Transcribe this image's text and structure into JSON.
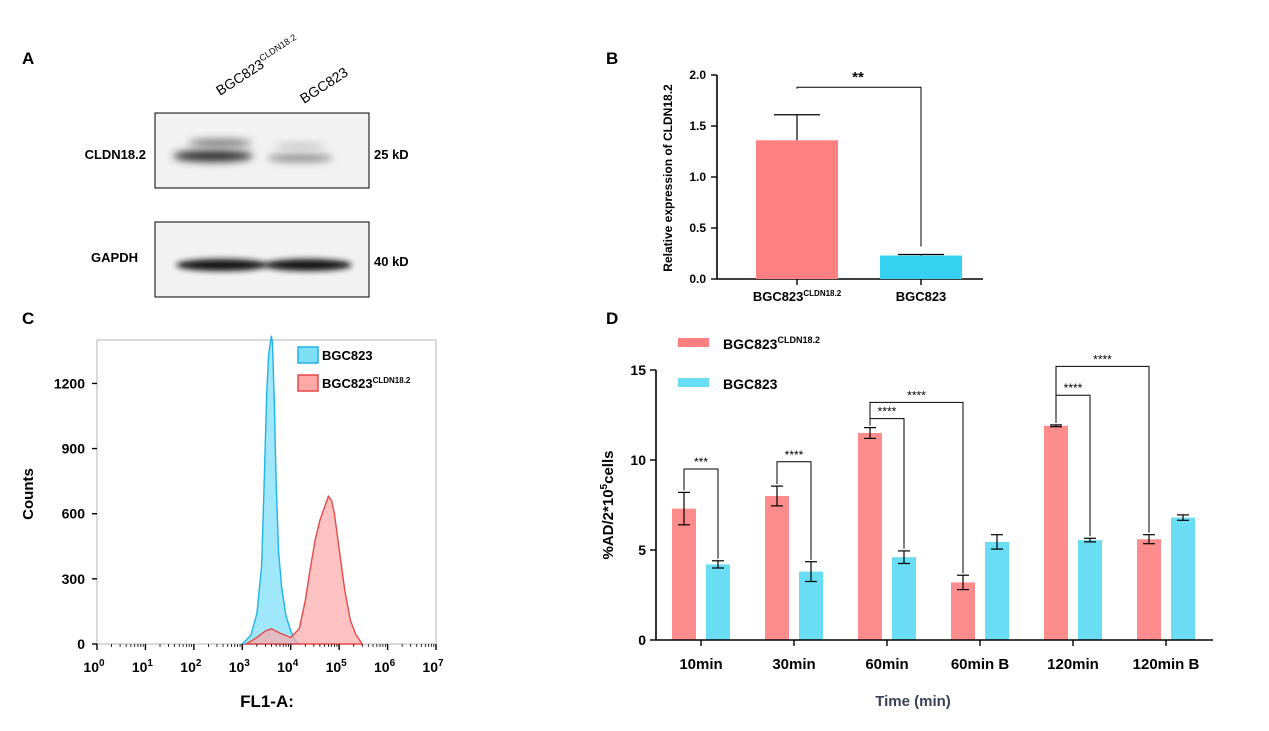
{
  "panel_labels": {
    "a": "A",
    "b": "B",
    "c": "C",
    "d": "D"
  },
  "colors": {
    "red": "#ff8080",
    "red_line": "#e84848",
    "blue": "#36d1f0",
    "blue_line": "#20b4e6",
    "red_fill": "#ffa8a8",
    "blue_fill": "#7fdff7"
  },
  "chart_data": [
    {
      "panel": "A",
      "type": "table",
      "lanes": [
        {
          "base": "BGC823",
          "sup": "CLDN18.2"
        },
        {
          "base": "BGC823",
          "sup": ""
        }
      ],
      "blots": [
        {
          "protein": "CLDN18.2",
          "size": "25 kD"
        },
        {
          "protein": "GAPDH",
          "size": "40 kD"
        }
      ]
    },
    {
      "panel": "B",
      "type": "bar",
      "ylabel": "Relative expression of CLDN18.2",
      "ylim": [
        0,
        2.0
      ],
      "yticks": [
        "0.0",
        "0.5",
        "1.0",
        "1.5",
        "2.0"
      ],
      "categories": [
        {
          "base": "BGC823",
          "sup": "CLDN18.2"
        },
        {
          "base": "BGC823",
          "sup": ""
        }
      ],
      "values": [
        1.36,
        0.23
      ],
      "errors": [
        0.25,
        0.01
      ],
      "significance": "**"
    },
    {
      "panel": "C",
      "type": "area",
      "xlabel": "FL1-A:",
      "ylabel": "Counts",
      "x_scale": "log",
      "xlim": [
        1,
        10000000
      ],
      "xticks": [
        {
          "base": "10",
          "exp": "0"
        },
        {
          "base": "10",
          "exp": "1"
        },
        {
          "base": "10",
          "exp": "2"
        },
        {
          "base": "10",
          "exp": "3"
        },
        {
          "base": "10",
          "exp": "4"
        },
        {
          "base": "10",
          "exp": "5"
        },
        {
          "base": "10",
          "exp": "6"
        },
        {
          "base": "10",
          "exp": "7"
        }
      ],
      "ylim": [
        0,
        1400
      ],
      "yticks": [
        "0",
        "300",
        "600",
        "900",
        "1200"
      ],
      "legend": [
        {
          "base": "BGC823",
          "sup": ""
        },
        {
          "base": "BGC823",
          "sup": "CLDN18.2"
        }
      ],
      "series": [
        {
          "x": [
            1000,
            1500,
            2000,
            2500,
            2800,
            3200,
            3500,
            3800,
            4000,
            4200,
            4600,
            5000,
            5600,
            6500,
            8000,
            10000,
            12500,
            15000
          ],
          "y": [
            0,
            40,
            140,
            360,
            700,
            1150,
            1330,
            1390,
            1420,
            1380,
            1100,
            750,
            430,
            260,
            130,
            60,
            15,
            0
          ]
        },
        {
          "x": [
            1200,
            2000,
            3000,
            4000,
            6000,
            10000,
            15000,
            20000,
            25000,
            32000,
            40000,
            50000,
            60000,
            70000,
            80000,
            100000,
            130000,
            170000,
            220000,
            300000
          ],
          "y": [
            0,
            30,
            60,
            70,
            50,
            30,
            70,
            200,
            340,
            480,
            570,
            630,
            680,
            660,
            600,
            440,
            250,
            110,
            45,
            0
          ]
        }
      ]
    },
    {
      "panel": "D",
      "type": "bar",
      "xlabel": "Time (min)",
      "ylabel_parts": {
        "a": "%AD/2*10",
        "exp": "5",
        "b": "cells"
      },
      "ylim": [
        0,
        15
      ],
      "yticks": [
        "0",
        "5",
        "10",
        "15"
      ],
      "categories": [
        "10min",
        "30min",
        "60min",
        "60min B",
        "120min",
        "120min B"
      ],
      "legend": [
        {
          "base": "BGC823",
          "sup": "CLDN18.2"
        },
        {
          "base": "BGC823",
          "sup": ""
        }
      ],
      "series": [
        {
          "values": [
            7.3,
            8.0,
            11.5,
            3.2,
            11.9,
            5.6
          ],
          "errors": [
            0.9,
            0.55,
            0.3,
            0.4,
            0.05,
            0.25
          ]
        },
        {
          "values": [
            4.2,
            3.8,
            4.6,
            5.45,
            5.55,
            6.8
          ],
          "errors": [
            0.2,
            0.55,
            0.35,
            0.4,
            0.1,
            0.15
          ]
        }
      ],
      "significance": [
        {
          "label": "***"
        },
        {
          "label": "****"
        },
        {
          "label": "****"
        },
        {
          "label": "****"
        },
        {
          "label": "****"
        },
        {
          "label": "****"
        }
      ]
    }
  ]
}
